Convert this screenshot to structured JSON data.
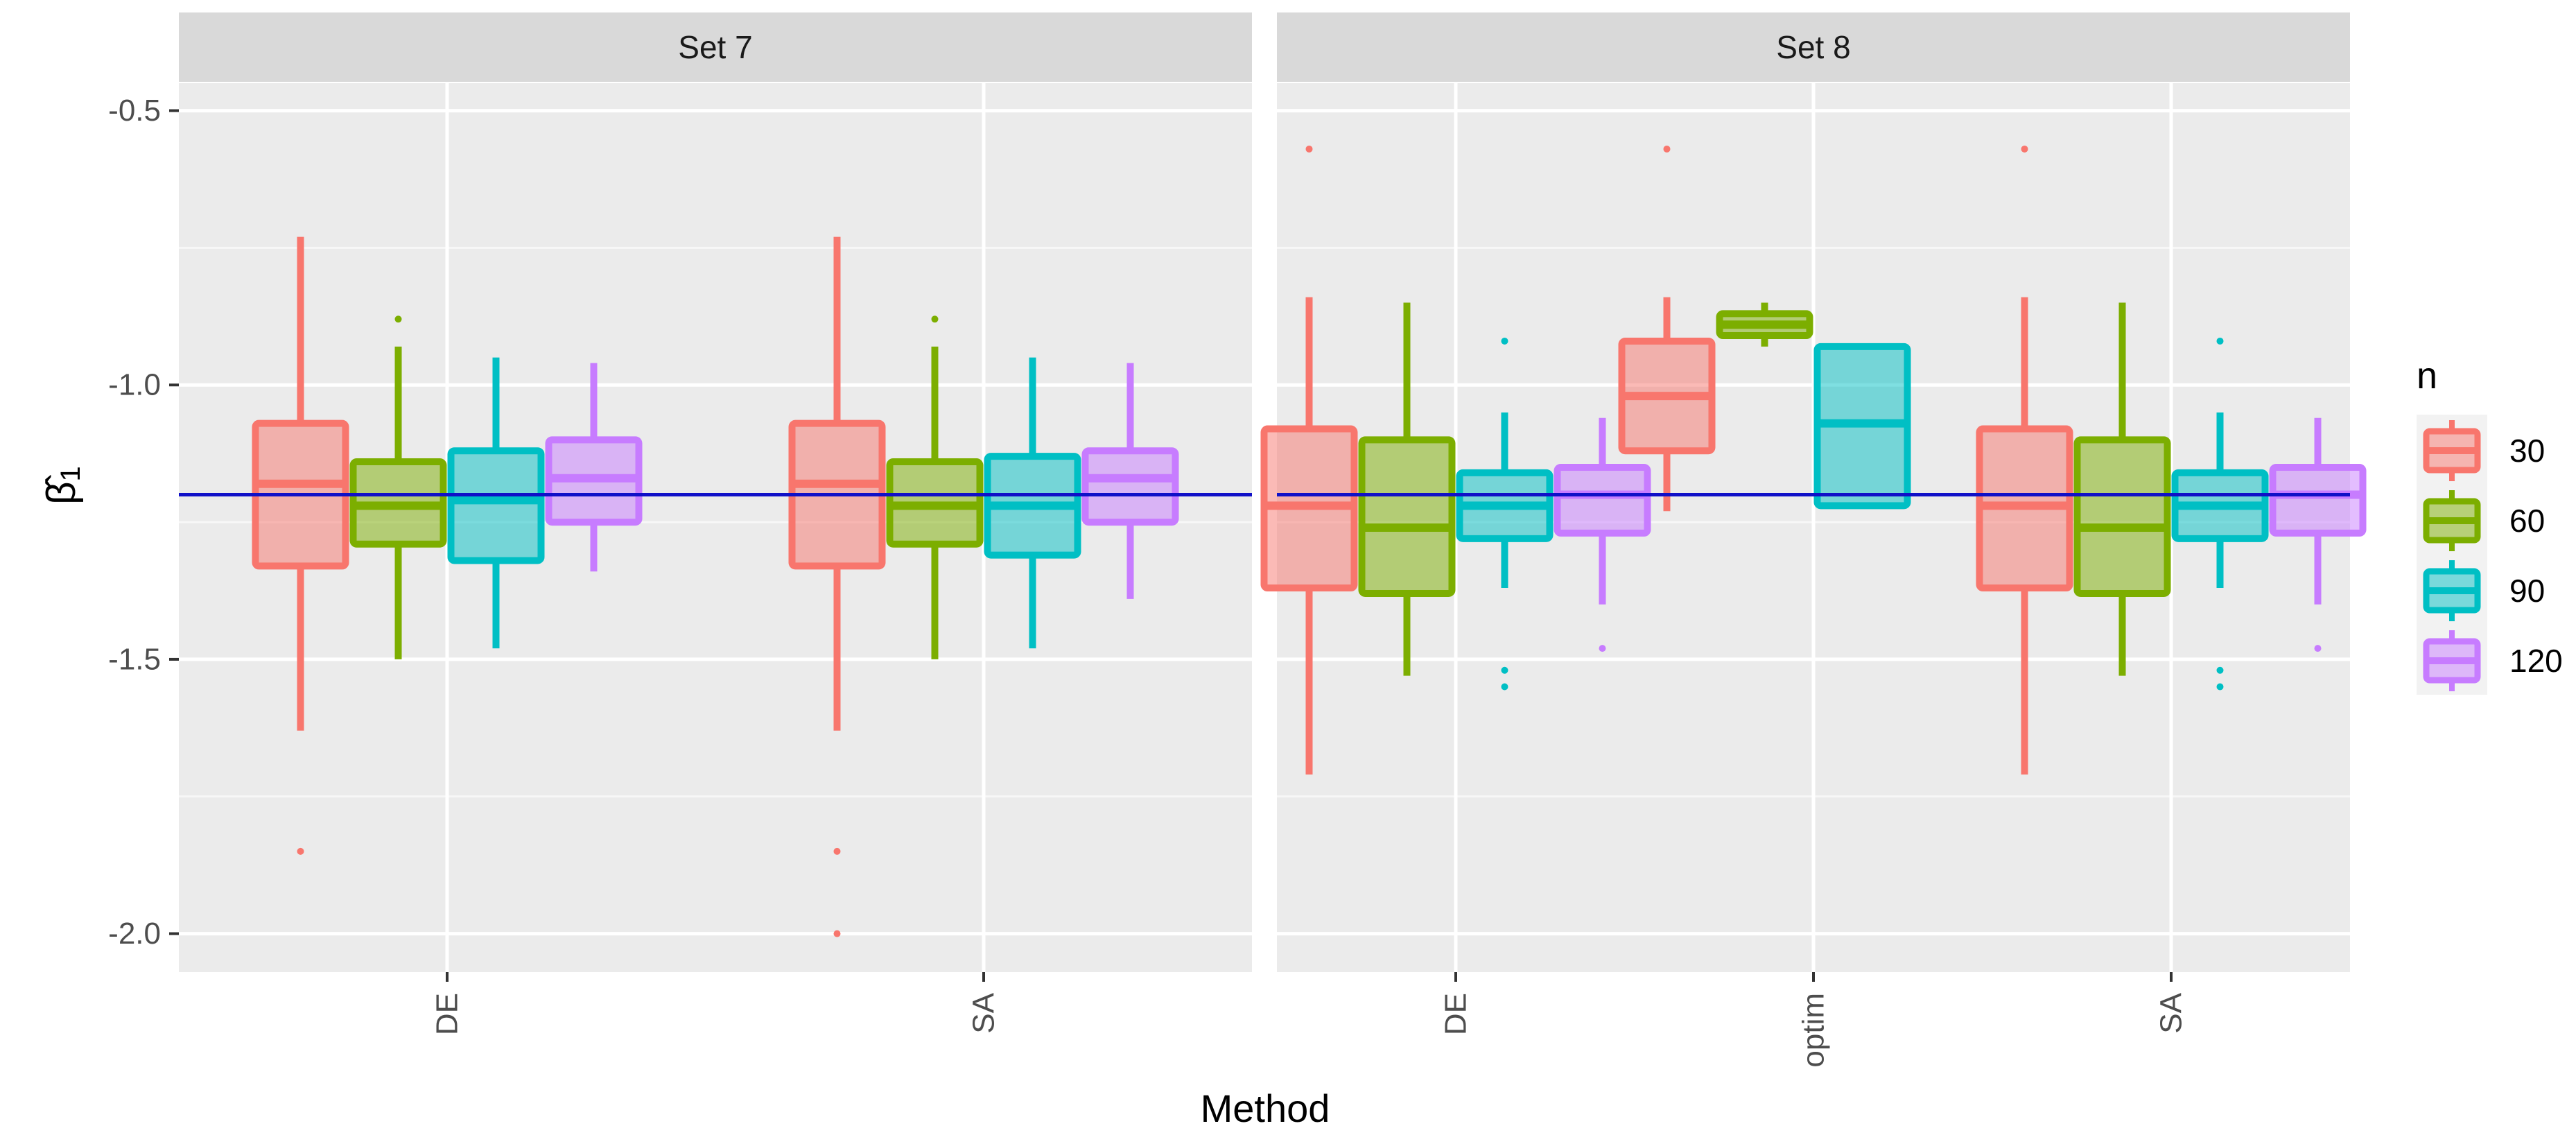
{
  "chart_data": {
    "type": "boxplot",
    "xlabel": "Method",
    "ylabel": "β̂1",
    "ylim": [
      -2.07,
      -0.45
    ],
    "yticks": [
      -0.5,
      -1.0,
      -1.5,
      -2.0
    ],
    "ytick_labels": [
      "-0.5",
      "-1.0",
      "-1.5",
      "-2.0"
    ],
    "reference_line": -1.2,
    "reference_color": "#1010c8",
    "legend": {
      "title": "n",
      "placement": "right",
      "items": [
        {
          "label": "30",
          "color": "#f8766d"
        },
        {
          "label": "60",
          "color": "#7cae00"
        },
        {
          "label": "90",
          "color": "#00bfc4"
        },
        {
          "label": "120",
          "color": "#c77cff"
        }
      ]
    },
    "panels": [
      {
        "title": "Set 7",
        "categories": [
          "DE",
          "SA"
        ],
        "groups": [
          {
            "category": "DE",
            "boxes": [
              {
                "n": "30",
                "low": -1.63,
                "q1": -1.33,
                "median": -1.18,
                "q3": -1.07,
                "high": -0.73,
                "outliers": [
                  -1.85
                ]
              },
              {
                "n": "60",
                "low": -1.5,
                "q1": -1.29,
                "median": -1.22,
                "q3": -1.14,
                "high": -0.93,
                "outliers": [
                  -0.88
                ]
              },
              {
                "n": "90",
                "low": -1.48,
                "q1": -1.32,
                "median": -1.21,
                "q3": -1.12,
                "high": -0.95,
                "outliers": []
              },
              {
                "n": "120",
                "low": -1.34,
                "q1": -1.25,
                "median": -1.17,
                "q3": -1.1,
                "high": -0.96,
                "outliers": []
              }
            ]
          },
          {
            "category": "SA",
            "boxes": [
              {
                "n": "30",
                "low": -1.63,
                "q1": -1.33,
                "median": -1.18,
                "q3": -1.07,
                "high": -0.73,
                "outliers": [
                  -1.85,
                  -2.0
                ]
              },
              {
                "n": "60",
                "low": -1.5,
                "q1": -1.29,
                "median": -1.22,
                "q3": -1.14,
                "high": -0.93,
                "outliers": [
                  -0.88
                ]
              },
              {
                "n": "90",
                "low": -1.48,
                "q1": -1.31,
                "median": -1.22,
                "q3": -1.13,
                "high": -0.95,
                "outliers": []
              },
              {
                "n": "120",
                "low": -1.39,
                "q1": -1.25,
                "median": -1.17,
                "q3": -1.12,
                "high": -0.96,
                "outliers": []
              }
            ]
          }
        ]
      },
      {
        "title": "Set 8",
        "categories": [
          "DE",
          "optim",
          "SA"
        ],
        "groups": [
          {
            "category": "DE",
            "boxes": [
              {
                "n": "30",
                "low": -1.71,
                "q1": -1.37,
                "median": -1.22,
                "q3": -1.08,
                "high": -0.84,
                "outliers": [
                  -0.57
                ]
              },
              {
                "n": "60",
                "low": -1.53,
                "q1": -1.38,
                "median": -1.26,
                "q3": -1.1,
                "high": -0.85,
                "outliers": []
              },
              {
                "n": "90",
                "low": -1.37,
                "q1": -1.28,
                "median": -1.22,
                "q3": -1.16,
                "high": -1.05,
                "outliers": [
                  -0.92,
                  -1.52,
                  -1.55
                ]
              },
              {
                "n": "120",
                "low": -1.4,
                "q1": -1.27,
                "median": -1.2,
                "q3": -1.15,
                "high": -1.06,
                "outliers": [
                  -1.48
                ]
              }
            ]
          },
          {
            "category": "optim",
            "boxes": [
              {
                "n": "30",
                "low": -1.23,
                "q1": -1.12,
                "median": -1.02,
                "q3": -0.92,
                "high": -0.84,
                "outliers": [
                  -0.57
                ]
              },
              {
                "n": "60",
                "low": -0.93,
                "q1": -0.91,
                "median": -0.89,
                "q3": -0.87,
                "high": -0.85,
                "outliers": []
              },
              {
                "n": "90",
                "low": -1.22,
                "q1": -1.22,
                "median": -1.07,
                "q3": -0.93,
                "high": -0.93,
                "outliers": []
              }
            ]
          },
          {
            "category": "SA",
            "boxes": [
              {
                "n": "30",
                "low": -1.71,
                "q1": -1.37,
                "median": -1.22,
                "q3": -1.08,
                "high": -0.84,
                "outliers": [
                  -0.57
                ]
              },
              {
                "n": "60",
                "low": -1.53,
                "q1": -1.38,
                "median": -1.26,
                "q3": -1.1,
                "high": -0.85,
                "outliers": []
              },
              {
                "n": "90",
                "low": -1.37,
                "q1": -1.28,
                "median": -1.22,
                "q3": -1.16,
                "high": -1.05,
                "outliers": [
                  -0.92,
                  -1.52,
                  -1.55
                ]
              },
              {
                "n": "120",
                "low": -1.4,
                "q1": -1.27,
                "median": -1.2,
                "q3": -1.15,
                "high": -1.06,
                "outliers": [
                  -1.48
                ]
              }
            ]
          }
        ]
      }
    ]
  }
}
